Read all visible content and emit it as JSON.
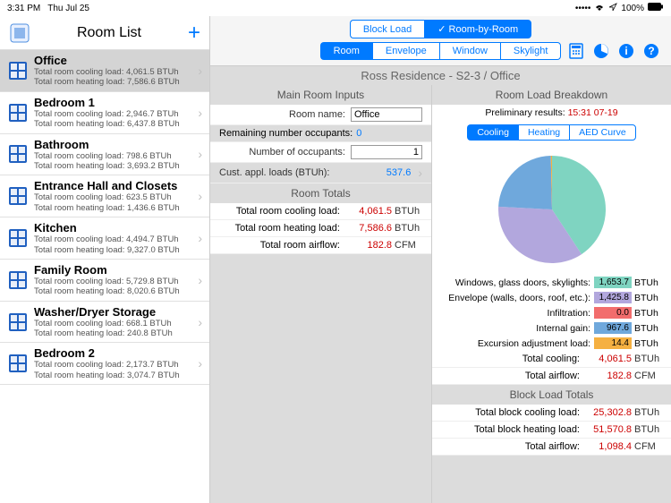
{
  "status": {
    "time": "3:31 PM",
    "date": "Thu Jul 25",
    "battery": "100%"
  },
  "sidebar": {
    "title": "Room List",
    "rooms": [
      {
        "name": "Office",
        "cooling": "4,061.5",
        "heating": "7,586.6",
        "selected": true
      },
      {
        "name": "Bedroom 1",
        "cooling": "2,946.7",
        "heating": "6,437.8"
      },
      {
        "name": "Bathroom",
        "cooling": "798.6",
        "heating": "3,693.2"
      },
      {
        "name": "Entrance Hall and Closets",
        "cooling": "623.5",
        "heating": "1,436.6"
      },
      {
        "name": "Kitchen",
        "cooling": "4,494.7",
        "heating": "9,327.0"
      },
      {
        "name": "Family Room",
        "cooling": "5,729.8",
        "heating": "8,020.6"
      },
      {
        "name": "Washer/Dryer Storage",
        "cooling": "668.1",
        "heating": "240.8"
      },
      {
        "name": "Bedroom 2",
        "cooling": "2,173.7",
        "heating": "3,074.7"
      }
    ]
  },
  "toolbar": {
    "modes": [
      "Block Load",
      "Room-by-Room"
    ],
    "active_mode": 1,
    "tabs": [
      "Room",
      "Envelope",
      "Window",
      "Skylight"
    ],
    "active_tab": 0
  },
  "breadcrumb": "Ross Residence - S2-3 / Office",
  "inputs": {
    "title": "Main Room Inputs",
    "room_name_label": "Room name:",
    "room_name": "Office",
    "remaining_label": "Remaining number occupants:",
    "remaining": "0",
    "occupants_label": "Number of occupants:",
    "occupants": "1",
    "appl_label": "Cust. appl. loads (BTUh):",
    "appl": "537.6"
  },
  "room_totals": {
    "title": "Room Totals",
    "rows": [
      {
        "lbl": "Total room cooling load:",
        "val": "4,061.5",
        "unit": "BTUh"
      },
      {
        "lbl": "Total room heating load:",
        "val": "7,586.6",
        "unit": "BTUh"
      },
      {
        "lbl": "Total room airflow:",
        "val": "182.8",
        "unit": "CFM"
      }
    ]
  },
  "breakdown": {
    "title": "Room Load Breakdown",
    "prelim_label": "Preliminary results:",
    "prelim_ts": "15:31 07-19",
    "chart_tabs": [
      "Cooling",
      "Heating",
      "AED Curve"
    ],
    "active_chart": 0,
    "pie": {
      "slices": [
        {
          "value": 1653.7,
          "color": "#7fd4c1"
        },
        {
          "value": 1425.8,
          "color": "#b2a7dd"
        },
        {
          "value": 0.0,
          "color": "#f26d6d"
        },
        {
          "value": 967.6,
          "color": "#6fa8dc"
        },
        {
          "value": 14.4,
          "color": "#f5b041"
        }
      ],
      "total": 4061.5
    },
    "legend": [
      {
        "lbl": "Windows, glass doors, skylights:",
        "val": "1,653.7",
        "color": "#7fd4c1",
        "unit": "BTUh"
      },
      {
        "lbl": "Envelope (walls, doors, roof, etc.):",
        "val": "1,425.8",
        "color": "#b2a7dd",
        "unit": "BTUh"
      },
      {
        "lbl": "Infiltration:",
        "val": "0.0",
        "color": "#f26d6d",
        "unit": "BTUh"
      },
      {
        "lbl": "Internal gain:",
        "val": "967.6",
        "color": "#6fa8dc",
        "unit": "BTUh"
      },
      {
        "lbl": "Excursion adjustment load:",
        "val": "14.4",
        "color": "#f5b041",
        "unit": "BTUh"
      }
    ],
    "sum_rows": [
      {
        "lbl": "Total cooling:",
        "val": "4,061.5",
        "unit": "BTUh"
      },
      {
        "lbl": "Total airflow:",
        "val": "182.8",
        "unit": "CFM"
      }
    ]
  },
  "block_totals": {
    "title": "Block Load Totals",
    "rows": [
      {
        "lbl": "Total block cooling load:",
        "val": "25,302.8",
        "unit": "BTUh"
      },
      {
        "lbl": "Total block heating load:",
        "val": "51,570.8",
        "unit": "BTUh"
      },
      {
        "lbl": "Total airflow:",
        "val": "1,098.4",
        "unit": "CFM"
      }
    ]
  }
}
